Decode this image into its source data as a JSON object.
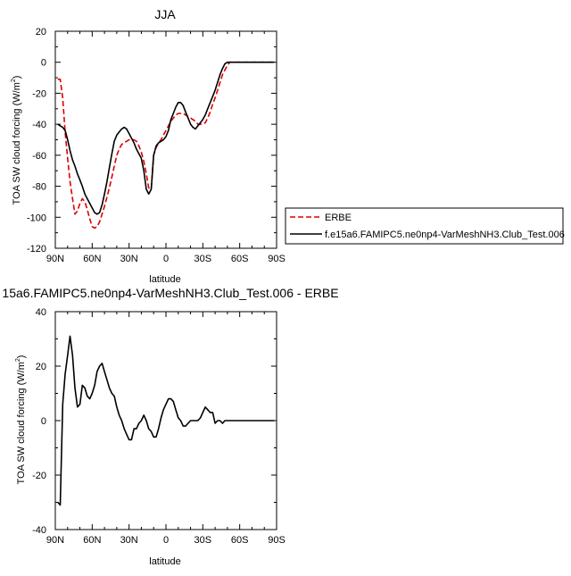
{
  "chart_data": [
    {
      "type": "line",
      "title": "JJA",
      "xlabel": "latitude",
      "ylabel": "TOA SW cloud forcing (W/m²)",
      "ylabel_main": "TOA SW cloud forcing (W/m",
      "ylabel_sup": "2",
      "ylabel_tail": ")",
      "xlim": [
        90,
        -90
      ],
      "ylim": [
        -120,
        20
      ],
      "xticks": [
        {
          "value": 90,
          "label": "90N"
        },
        {
          "value": 60,
          "label": "60N"
        },
        {
          "value": 30,
          "label": "30N"
        },
        {
          "value": 0,
          "label": "0"
        },
        {
          "value": -30,
          "label": "30S"
        },
        {
          "value": -60,
          "label": "60S"
        },
        {
          "value": -90,
          "label": "90S"
        }
      ],
      "yticks": [
        20,
        0,
        -20,
        -40,
        -60,
        -80,
        -100,
        -120
      ],
      "legend_position": "right",
      "series": [
        {
          "name": "ERBE",
          "color": "#dd0000",
          "dash": "dashed",
          "x": [
            88,
            86,
            84,
            82,
            80,
            78,
            76,
            74,
            72,
            70,
            68,
            66,
            64,
            62,
            60,
            58,
            56,
            54,
            52,
            50,
            48,
            46,
            44,
            42,
            40,
            38,
            36,
            34,
            32,
            30,
            28,
            26,
            24,
            22,
            20,
            18,
            16,
            14,
            12,
            10,
            8,
            6,
            4,
            2,
            0,
            -2,
            -4,
            -6,
            -8,
            -10,
            -12,
            -14,
            -16,
            -18,
            -20,
            -22,
            -24,
            -26,
            -28,
            -30,
            -32,
            -34,
            -36,
            -38,
            -40,
            -42,
            -44,
            -46,
            -48,
            -50,
            -52,
            -54,
            -56,
            -58,
            -60,
            -62,
            -64,
            -66,
            -68,
            -70,
            -72,
            -74,
            -76,
            -78,
            -80,
            -82,
            -84,
            -86,
            -88
          ],
          "y": [
            -11,
            -11,
            -23,
            -45,
            -62,
            -77,
            -88,
            -98,
            -96,
            -91,
            -88,
            -90,
            -95,
            -101,
            -106,
            -107,
            -106,
            -103,
            -98,
            -93,
            -87,
            -81,
            -74,
            -67,
            -60,
            -56,
            -53,
            -52,
            -51,
            -50,
            -50,
            -50,
            -51,
            -54,
            -58,
            -64,
            -72,
            -81,
            -82,
            -60,
            -55,
            -52,
            -50,
            -47,
            -44,
            -41,
            -38,
            -36,
            -34,
            -33,
            -33,
            -33,
            -34,
            -35,
            -36,
            -37,
            -38,
            -40,
            -40,
            -40,
            -39,
            -36,
            -32,
            -27,
            -23,
            -18,
            -13,
            -8,
            -5,
            -2,
            0,
            0,
            0,
            0,
            0,
            0,
            0,
            0,
            0,
            0,
            0,
            0,
            0,
            0,
            0,
            0,
            0,
            0,
            0
          ]
        },
        {
          "name": "f.e15a6.FAMIPC5.ne0np4-VarMeshNH3.Club_Test.006",
          "color": "#000000",
          "dash": "solid",
          "x": [
            88,
            86,
            84,
            82,
            80,
            78,
            76,
            74,
            72,
            70,
            68,
            66,
            64,
            62,
            60,
            58,
            56,
            54,
            52,
            50,
            48,
            46,
            44,
            42,
            40,
            38,
            36,
            34,
            32,
            30,
            28,
            26,
            24,
            22,
            20,
            18,
            16,
            14,
            12,
            10,
            8,
            6,
            4,
            2,
            0,
            -2,
            -4,
            -6,
            -8,
            -10,
            -12,
            -14,
            -16,
            -18,
            -20,
            -22,
            -24,
            -26,
            -28,
            -30,
            -32,
            -34,
            -36,
            -38,
            -40,
            -42,
            -44,
            -46,
            -48,
            -50,
            -52,
            -54,
            -56,
            -58,
            -60,
            -62,
            -64,
            -66,
            -68,
            -70,
            -72,
            -74,
            -76,
            -78,
            -80,
            -82,
            -84,
            -86,
            -88
          ],
          "y": [
            -40,
            -41,
            -42,
            -44,
            -50,
            -57,
            -63,
            -67,
            -72,
            -76,
            -80,
            -85,
            -88,
            -91,
            -94,
            -97,
            -98,
            -97,
            -92,
            -85,
            -77,
            -68,
            -59,
            -51,
            -47,
            -45,
            -43,
            -42,
            -43,
            -46,
            -49,
            -52,
            -56,
            -59,
            -62,
            -70,
            -82,
            -85,
            -82,
            -60,
            -54,
            -52,
            -51,
            -50,
            -48,
            -44,
            -37,
            -33,
            -29,
            -26,
            -26,
            -28,
            -32,
            -36,
            -40,
            -42,
            -43,
            -41,
            -39,
            -37,
            -34,
            -30,
            -26,
            -22,
            -18,
            -13,
            -8,
            -4,
            -1,
            0,
            0,
            0,
            0,
            0,
            0,
            0,
            0,
            0,
            0,
            0,
            0,
            0,
            0,
            0,
            0,
            0,
            0,
            0,
            0
          ]
        }
      ]
    },
    {
      "type": "line",
      "title": "15a6.FAMIPC5.ne0np4-VarMeshNH3.Club_Test.006 - ERBE",
      "xlabel": "latitude",
      "ylabel": "TOA SW cloud forcing (W/m²)",
      "ylabel_main": "TOA SW cloud forcing (W/m",
      "ylabel_sup": "2",
      "ylabel_tail": ")",
      "xlim": [
        90,
        -90
      ],
      "ylim": [
        -40,
        40
      ],
      "xticks": [
        {
          "value": 90,
          "label": "90N"
        },
        {
          "value": 60,
          "label": "60N"
        },
        {
          "value": 30,
          "label": "30N"
        },
        {
          "value": 0,
          "label": "0"
        },
        {
          "value": -30,
          "label": "30S"
        },
        {
          "value": -60,
          "label": "60S"
        },
        {
          "value": -90,
          "label": "90S"
        }
      ],
      "yticks": [
        40,
        20,
        0,
        -20,
        -40
      ],
      "series": [
        {
          "color": "#000000",
          "dash": "solid",
          "x": [
            88,
            86,
            84,
            82,
            80,
            78,
            76,
            74,
            72,
            70,
            68,
            66,
            64,
            62,
            60,
            58,
            56,
            54,
            52,
            50,
            48,
            46,
            44,
            42,
            40,
            38,
            36,
            34,
            32,
            30,
            28,
            26,
            24,
            22,
            20,
            18,
            16,
            14,
            12,
            10,
            8,
            6,
            4,
            2,
            0,
            -2,
            -4,
            -6,
            -8,
            -10,
            -12,
            -14,
            -16,
            -18,
            -20,
            -22,
            -24,
            -26,
            -28,
            -30,
            -32,
            -34,
            -36,
            -38,
            -40,
            -42,
            -44,
            -46,
            -48,
            -50,
            -52,
            -54,
            -56,
            -58,
            -60,
            -62,
            -64,
            -66,
            -68,
            -70,
            -72,
            -74,
            -76,
            -78,
            -80,
            -82,
            -84,
            -86,
            -88
          ],
          "y": [
            -30,
            -31,
            6,
            17,
            24,
            31,
            24,
            12,
            5,
            6,
            13,
            12,
            9,
            8,
            10,
            13,
            18,
            20,
            21,
            18,
            15,
            12,
            10,
            9,
            5,
            2,
            0,
            -3,
            -5,
            -7,
            -7,
            -3,
            -3,
            -1,
            0,
            2,
            0,
            -3,
            -4,
            -6,
            -6,
            -3,
            1,
            4,
            6,
            8,
            8,
            7,
            4,
            1,
            0,
            -2,
            -2,
            -1,
            0,
            0,
            0,
            0,
            1,
            3,
            5,
            4,
            3,
            3,
            -1,
            0,
            0,
            -1,
            0,
            0,
            0,
            0,
            0,
            0,
            0,
            0,
            0,
            0,
            0,
            0,
            0,
            0,
            0,
            0,
            0,
            0,
            0,
            0,
            0
          ]
        }
      ]
    }
  ]
}
